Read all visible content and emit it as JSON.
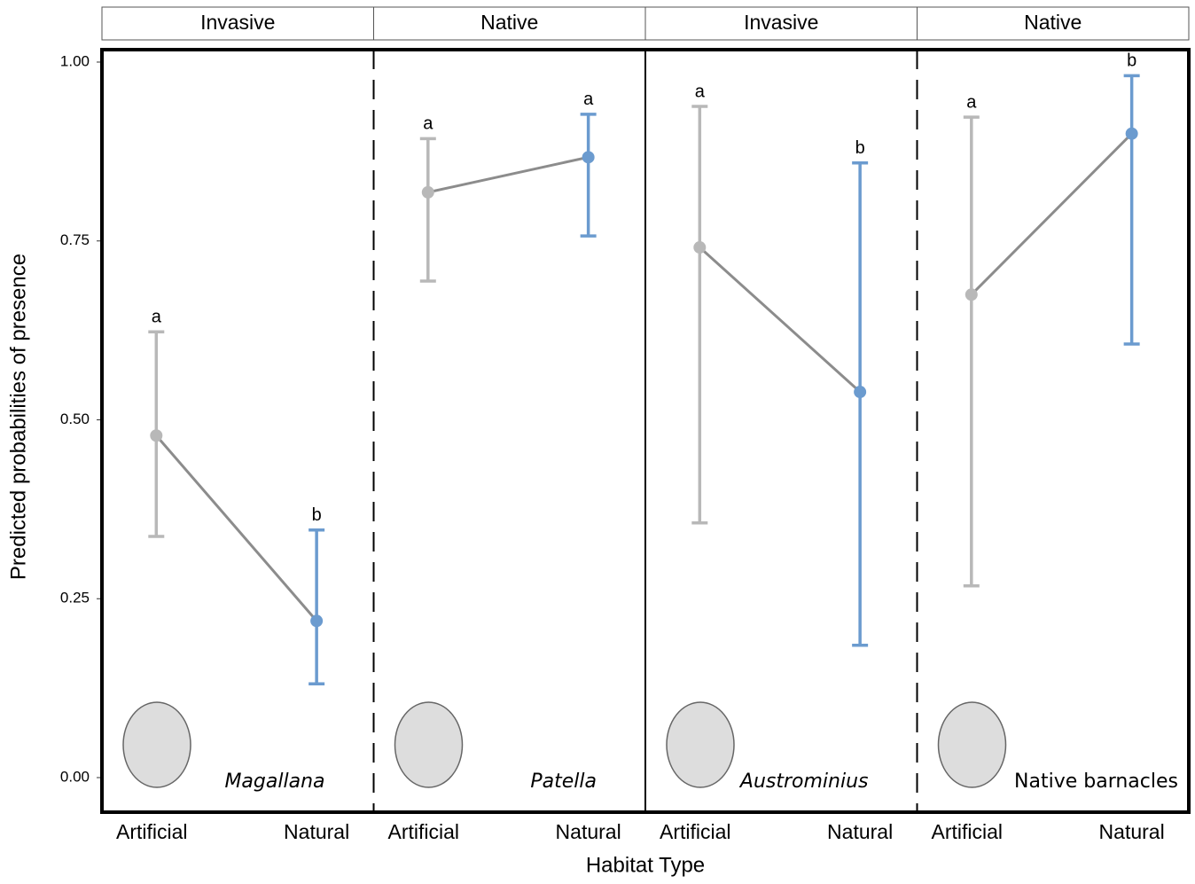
{
  "chart_data": {
    "type": "pointrange",
    "ylabel": "Predicted probabilities of presence",
    "xlabel": "Habitat Type",
    "categories": [
      "Artificial",
      "Natural"
    ],
    "colors": [
      "#b8b8b8",
      "#6b9bcf"
    ],
    "line_color": "#8c8c8c",
    "ylim": [
      0,
      1
    ],
    "yticks": [
      {
        "value": 0,
        "label": "0.00"
      },
      {
        "value": 0.25,
        "label": "0.25"
      },
      {
        "value": 0.5,
        "label": "0.50"
      },
      {
        "value": 0.75,
        "label": "0.75"
      },
      {
        "value": 1,
        "label": "1.00"
      }
    ],
    "panels": [
      {
        "strip": "Invasive",
        "species": "Magallana",
        "italic": true,
        "values": [
          0.478,
          0.219
        ],
        "lower": [
          0.337,
          0.131
        ],
        "upper": [
          0.623,
          0.346
        ],
        "letters": [
          "a",
          "b"
        ]
      },
      {
        "strip": "Native",
        "species": "Patella",
        "italic": true,
        "values": [
          0.818,
          0.867
        ],
        "lower": [
          0.694,
          0.757
        ],
        "upper": [
          0.893,
          0.927
        ],
        "letters": [
          "a",
          "a"
        ]
      },
      {
        "strip": "Invasive",
        "species": "Austrominius",
        "italic": true,
        "values": [
          0.741,
          0.539
        ],
        "lower": [
          0.356,
          0.185
        ],
        "upper": [
          0.938,
          0.859
        ],
        "letters": [
          "a",
          "b"
        ]
      },
      {
        "strip": "Native",
        "species": "Native barnacles",
        "italic": false,
        "values": [
          0.675,
          0.9
        ],
        "lower": [
          0.268,
          0.606
        ],
        "upper": [
          0.923,
          0.981
        ],
        "letters": [
          "a",
          "b"
        ]
      }
    ]
  }
}
